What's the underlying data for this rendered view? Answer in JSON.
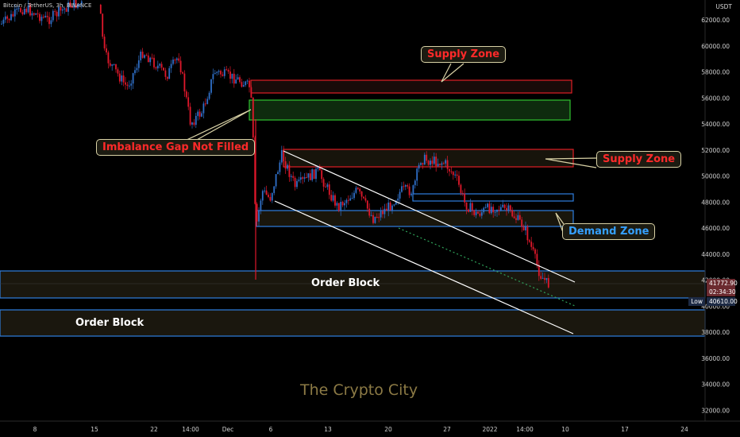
{
  "header": {
    "symbol": "Bitcoin / TetherUS, 3h, BINANCE",
    "currency": "USDT"
  },
  "price_axis": {
    "ticks": [
      "62000.00",
      "60000.00",
      "58000.00",
      "56000.00",
      "54000.00",
      "52000.00",
      "50000.00",
      "48000.00",
      "46000.00",
      "44000.00",
      "42000.00",
      "40000.00",
      "38000.00",
      "36000.00",
      "34000.00",
      "32000.00"
    ],
    "last_price": "41772.90",
    "countdown": "02:34:30",
    "low_label": "Low",
    "low_price": "40610.00"
  },
  "time_axis": {
    "ticks": [
      "8",
      "15",
      "22",
      "14:00",
      "Dec",
      "6",
      "13",
      "20",
      "27",
      "2022",
      "14:00",
      "10",
      "17",
      "24"
    ]
  },
  "annotations": {
    "supply_zone_top": "Supply Zone",
    "supply_zone_right": "Supply Zone",
    "imbalance_gap": "Imbalance Gap Not Filled",
    "demand_zone": "Demand Zone",
    "order_block_upper": "Order Block",
    "order_block_lower": "Order Block"
  },
  "watermark": "The Crypto City",
  "colors": {
    "background": "#000000",
    "bull_candle": "#2f6fc8",
    "bear_candle": "#e0182b",
    "supply_border": "#e01f26",
    "demand_border": "#2f7fe0",
    "imbalance_border": "#2fc22f",
    "channel_line": "#ffffff",
    "callout_border": "#d9d2a6"
  }
}
